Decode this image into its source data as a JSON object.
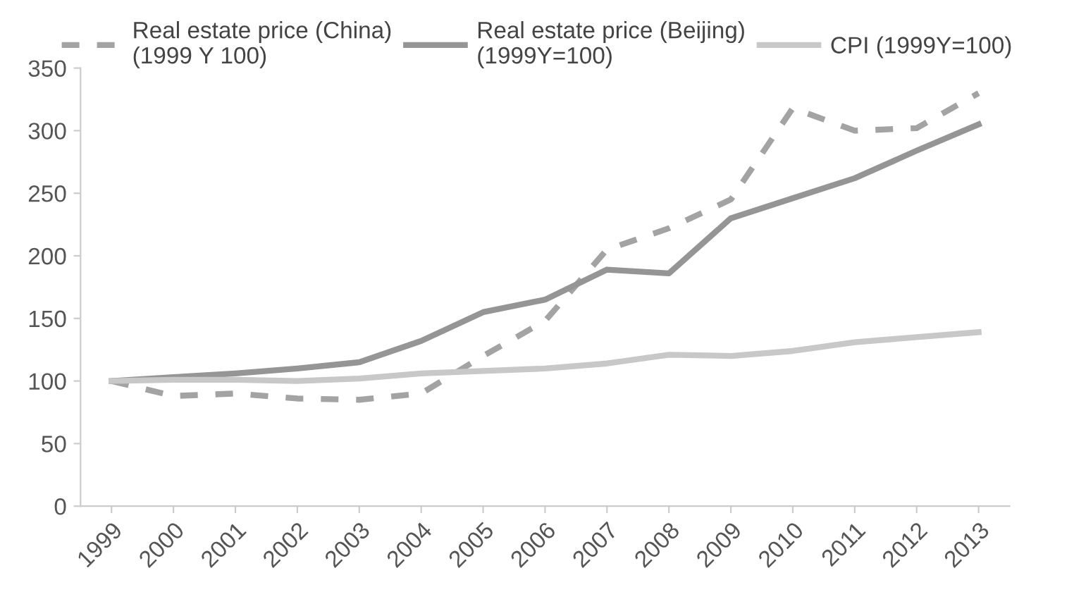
{
  "chart_data": {
    "type": "line",
    "categories": [
      "1999",
      "2000",
      "2001",
      "2002",
      "2003",
      "2004",
      "2005",
      "2006",
      "2007",
      "2008",
      "2009",
      "2010",
      "2011",
      "2012",
      "2013"
    ],
    "series": [
      {
        "name": "Real estate price (China)\n(1999 Y 100)",
        "color": "#a3a3a3",
        "line_style": "dashed",
        "values": [
          100,
          88,
          90,
          86,
          85,
          90,
          120,
          148,
          205,
          222,
          245,
          318,
          300,
          302,
          330
        ]
      },
      {
        "name": "Real estate price (Beijing)\n(1999Y=100)",
        "color": "#959595",
        "line_style": "solid",
        "values": [
          100,
          103,
          106,
          110,
          115,
          132,
          155,
          165,
          189,
          186,
          230,
          246,
          262,
          284,
          305
        ]
      },
      {
        "name": "CPI (1999Y=100)",
        "color": "#c8c8c8",
        "line_style": "solid",
        "values": [
          100,
          101,
          101,
          100,
          102,
          106,
          108,
          110,
          114,
          121,
          120,
          124,
          131,
          135,
          139
        ]
      }
    ],
    "ylim": [
      0,
      350
    ],
    "yticks": [
      0,
      50,
      100,
      150,
      200,
      250,
      300,
      350
    ],
    "grid": false,
    "legend": "top",
    "marker": "none"
  }
}
